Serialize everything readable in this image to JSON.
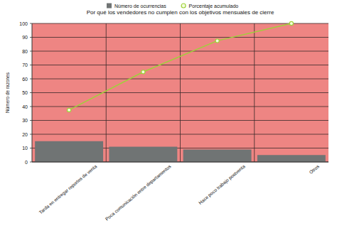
{
  "chart_data": {
    "type": "bar",
    "title": "Por qué los vendedores no cumplen con los objetivos mensuales de cierre",
    "y_label": "Número de razones",
    "categories": [
      "Tarda en entregar reportes de venta",
      "Poca comunicación entre departamentos",
      "Hace poco trabajo postventa",
      "Otros"
    ],
    "series": [
      {
        "name": "Número de ocurrencias",
        "type": "bar",
        "color": "#707474",
        "values": [
          15,
          11,
          9,
          5
        ]
      },
      {
        "name": "Porcentaje acumulado",
        "type": "line",
        "color": "#9fd13a",
        "marker": "circle",
        "values": [
          37.5,
          65,
          87.5,
          100
        ]
      }
    ],
    "ylim": [
      0,
      100
    ],
    "yticks": [
      0,
      10,
      20,
      30,
      40,
      50,
      60,
      70,
      80,
      90,
      100
    ],
    "grid": true,
    "legend": "top"
  }
}
